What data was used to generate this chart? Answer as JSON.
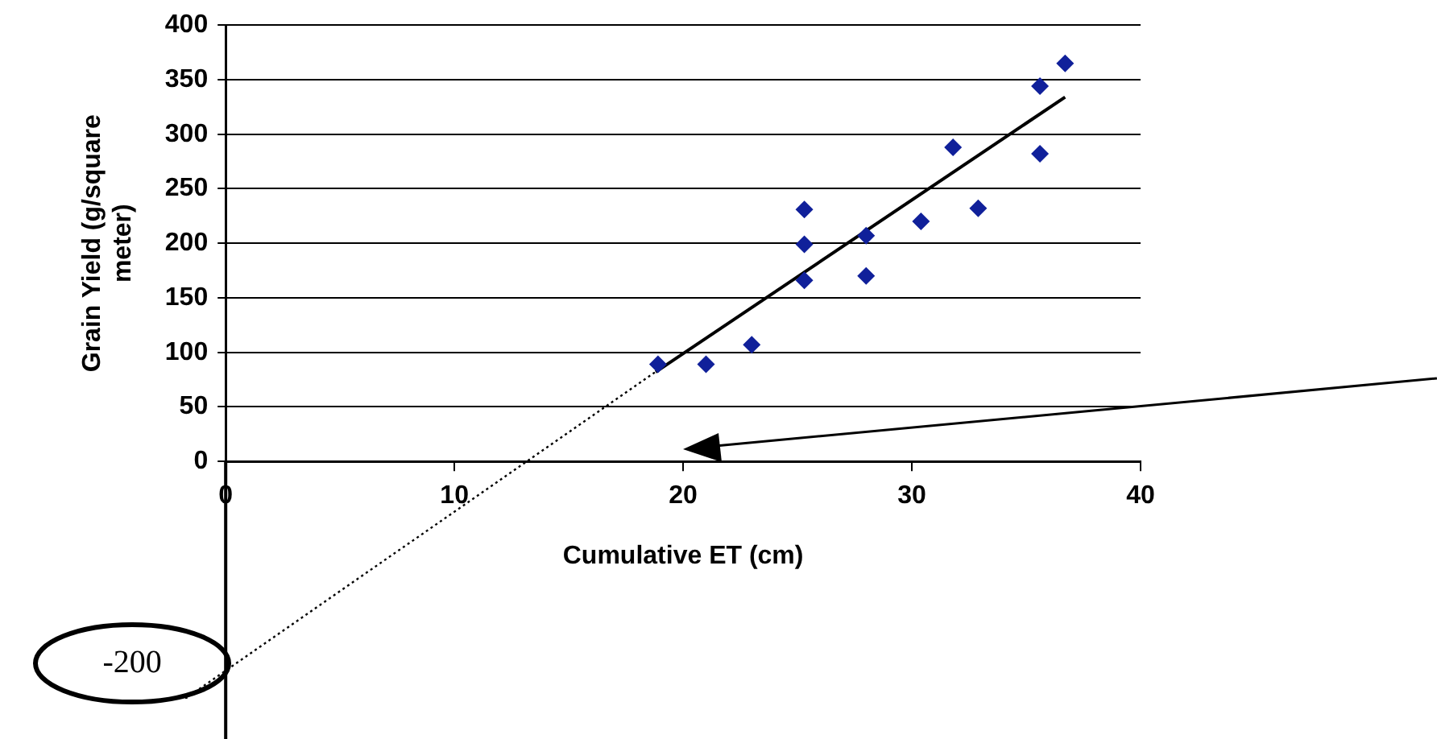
{
  "chart_data": {
    "type": "scatter",
    "xlabel": "Cumulative ET (cm)",
    "ylabel": "Grain Yield (g/square meter)",
    "xlim": [
      0,
      40
    ],
    "xticks": [
      0,
      10,
      20,
      30,
      40
    ],
    "ylim": [
      0,
      400
    ],
    "yticks": [
      0,
      50,
      100,
      150,
      200,
      250,
      300,
      350,
      400
    ],
    "grid": "y",
    "legend": false,
    "marker": "diamond",
    "series": [
      {
        "type": "scatter",
        "color": "#10209a",
        "x": [
          18.9,
          21,
          23,
          25.3,
          25.3,
          25.3,
          28,
          28,
          30.4,
          31.8,
          32.9,
          35.6,
          35.6,
          36.7
        ],
        "values": [
          89,
          89,
          107,
          231,
          199,
          166,
          207,
          170,
          220,
          288,
          232,
          344,
          282,
          365
        ]
      },
      {
        "type": "line",
        "color": "#000000",
        "line_style": "solid",
        "marker": "none",
        "x": [
          18.8,
          36.7
        ],
        "values": [
          82,
          334
        ]
      }
    ],
    "annotations": [
      "-200"
    ]
  }
}
